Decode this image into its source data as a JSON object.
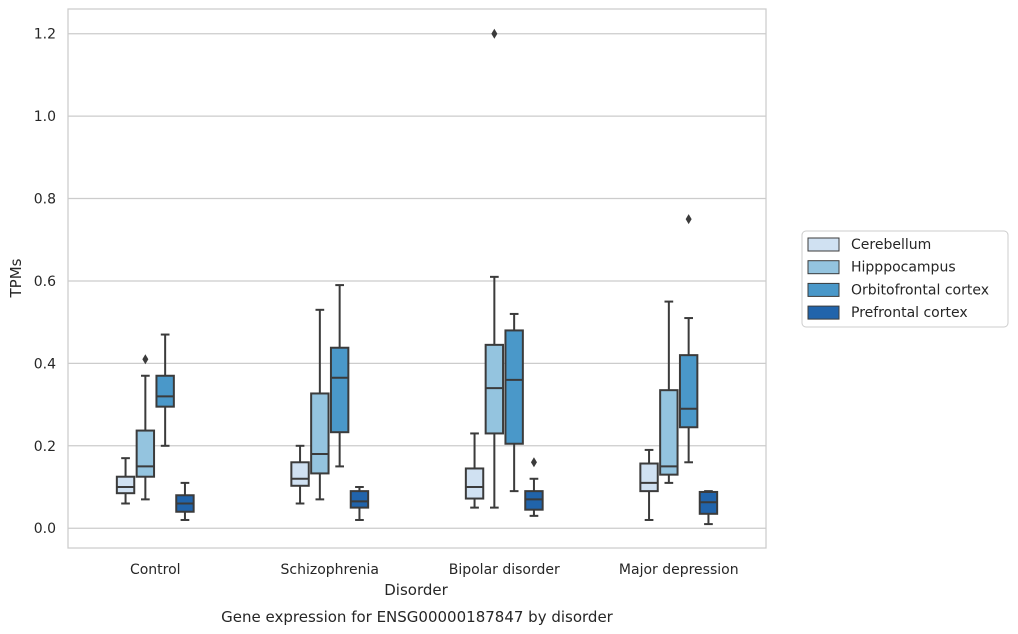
{
  "chart_data": {
    "type": "box",
    "title": "Gene expression for ENSG00000187847 by disorder",
    "xlabel": "Disorder",
    "ylabel": "TPMs",
    "ylim": [
      -0.048,
      1.26
    ],
    "yticks": [
      "0.0",
      "0.2",
      "0.4",
      "0.6",
      "0.8",
      "1.0",
      "1.2"
    ],
    "grid": "horizontal",
    "legend_position": "right",
    "categories": [
      "Control",
      "Schizophrenia",
      "Bipolar disorder",
      "Major depression"
    ],
    "series": [
      {
        "name": "Cerebellum",
        "color": "#d0e1f2",
        "boxes": [
          {
            "whislo": 0.06,
            "q1": 0.085,
            "med": 0.1,
            "q3": 0.125,
            "whishi": 0.17,
            "fliers": []
          },
          {
            "whislo": 0.06,
            "q1": 0.103,
            "med": 0.12,
            "q3": 0.16,
            "whishi": 0.2,
            "fliers": []
          },
          {
            "whislo": 0.05,
            "q1": 0.072,
            "med": 0.1,
            "q3": 0.145,
            "whishi": 0.23,
            "fliers": []
          },
          {
            "whislo": 0.02,
            "q1": 0.09,
            "med": 0.11,
            "q3": 0.157,
            "whishi": 0.19,
            "fliers": []
          }
        ]
      },
      {
        "name": "Hipppocampus",
        "color": "#94c4df",
        "boxes": [
          {
            "whislo": 0.07,
            "q1": 0.125,
            "med": 0.15,
            "q3": 0.237,
            "whishi": 0.37,
            "fliers": [
              0.41
            ]
          },
          {
            "whislo": 0.07,
            "q1": 0.133,
            "med": 0.18,
            "q3": 0.327,
            "whishi": 0.53,
            "fliers": []
          },
          {
            "whislo": 0.05,
            "q1": 0.23,
            "med": 0.34,
            "q3": 0.445,
            "whishi": 0.61,
            "fliers": [
              1.2
            ]
          },
          {
            "whislo": 0.11,
            "q1": 0.13,
            "med": 0.15,
            "q3": 0.335,
            "whishi": 0.55,
            "fliers": []
          }
        ]
      },
      {
        "name": "Orbitofrontal cortex",
        "color": "#4a98c9",
        "boxes": [
          {
            "whislo": 0.2,
            "q1": 0.295,
            "med": 0.32,
            "q3": 0.37,
            "whishi": 0.47,
            "fliers": []
          },
          {
            "whislo": 0.15,
            "q1": 0.233,
            "med": 0.365,
            "q3": 0.438,
            "whishi": 0.59,
            "fliers": []
          },
          {
            "whislo": 0.09,
            "q1": 0.205,
            "med": 0.36,
            "q3": 0.48,
            "whishi": 0.52,
            "fliers": []
          },
          {
            "whislo": 0.16,
            "q1": 0.245,
            "med": 0.29,
            "q3": 0.42,
            "whishi": 0.51,
            "fliers": [
              0.75
            ]
          }
        ]
      },
      {
        "name": "Prefrontal cortex",
        "color": "#2164ab",
        "boxes": [
          {
            "whislo": 0.02,
            "q1": 0.04,
            "med": 0.06,
            "q3": 0.08,
            "whishi": 0.11,
            "fliers": []
          },
          {
            "whislo": 0.02,
            "q1": 0.05,
            "med": 0.065,
            "q3": 0.09,
            "whishi": 0.1,
            "fliers": []
          },
          {
            "whislo": 0.03,
            "q1": 0.045,
            "med": 0.07,
            "q3": 0.09,
            "whishi": 0.12,
            "fliers": [
              0.16
            ]
          },
          {
            "whislo": 0.01,
            "q1": 0.035,
            "med": 0.063,
            "q3": 0.088,
            "whishi": 0.09,
            "fliers": []
          }
        ]
      }
    ]
  }
}
